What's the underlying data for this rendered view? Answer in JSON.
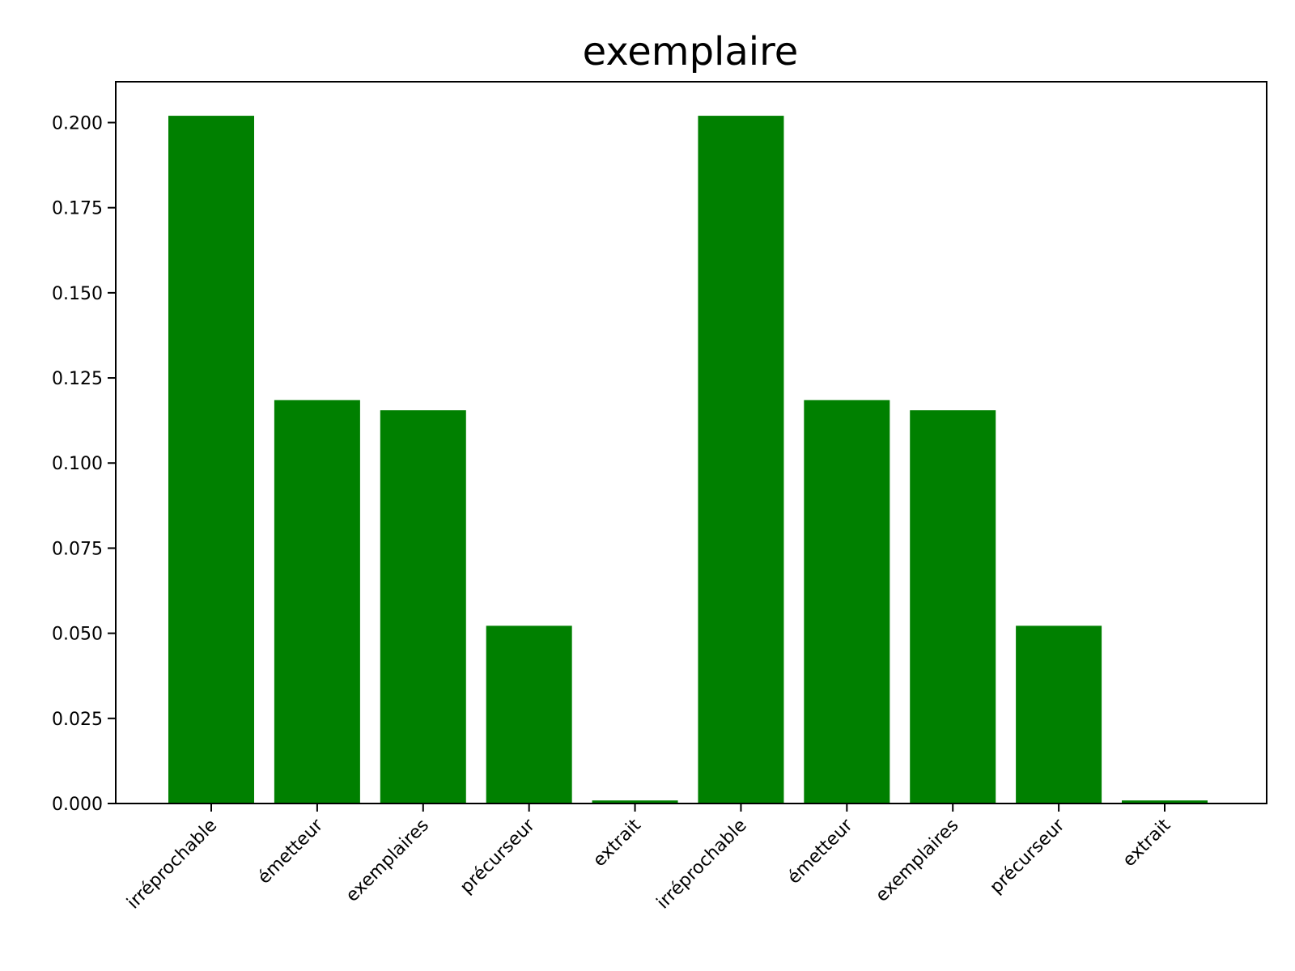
{
  "chart_data": {
    "type": "bar",
    "title": "exemplaire",
    "xlabel": "",
    "ylabel": "",
    "categories": [
      "irréprochable",
      "émetteur",
      "exemplaires",
      "précurseur",
      "extrait",
      "irréprochable",
      "émetteur",
      "exemplaires",
      "précurseur",
      "extrait"
    ],
    "values": [
      0.202,
      0.1185,
      0.1155,
      0.0522,
      0.0009,
      0.202,
      0.1185,
      0.1155,
      0.0522,
      0.0009
    ],
    "ylim": [
      0,
      0.212
    ],
    "yticks": [
      0.0,
      0.025,
      0.05,
      0.075,
      0.1,
      0.125,
      0.15,
      0.175,
      0.2
    ],
    "ytick_labels": [
      "0.000",
      "0.025",
      "0.050",
      "0.075",
      "0.100",
      "0.125",
      "0.150",
      "0.175",
      "0.200"
    ],
    "bar_color": "#008000",
    "grid": false,
    "legend": "none"
  }
}
